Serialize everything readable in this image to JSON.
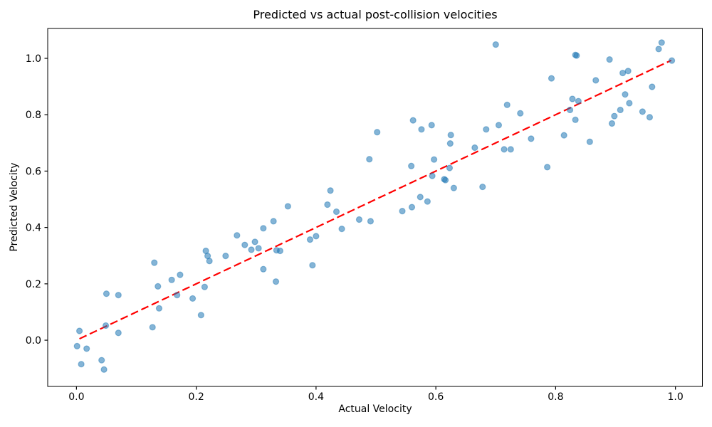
{
  "chart_data": {
    "type": "scatter",
    "title": "Predicted vs actual post-collision velocities",
    "xlabel": "Actual Velocity",
    "ylabel": "Predicted Velocity",
    "xlim": [
      -0.048,
      1.045
    ],
    "ylim": [
      -0.164,
      1.106
    ],
    "xtick_values": [
      0.0,
      0.2,
      0.4,
      0.6,
      0.8,
      1.0
    ],
    "xtick_labels": [
      "0.0",
      "0.2",
      "0.4",
      "0.6",
      "0.8",
      "1.0"
    ],
    "ytick_values": [
      0.0,
      0.2,
      0.4,
      0.6,
      0.8,
      1.0
    ],
    "ytick_labels": [
      "0.0",
      "0.2",
      "0.4",
      "0.6",
      "0.8",
      "1.0"
    ],
    "grid": false,
    "legend": "none",
    "marker_color": "#1f77b4",
    "marker_alpha": 0.55,
    "reference_line": {
      "name": "identity-line y=x",
      "color": "#ff0000",
      "style": "dashed",
      "from": [
        0.005,
        0.005
      ],
      "to": [
        0.993,
        0.993
      ]
    },
    "points": [
      [
        0.001,
        -0.021
      ],
      [
        0.005,
        0.033
      ],
      [
        0.008,
        -0.085
      ],
      [
        0.017,
        -0.03
      ],
      [
        0.042,
        -0.071
      ],
      [
        0.046,
        -0.104
      ],
      [
        0.049,
        0.052
      ],
      [
        0.05,
        0.165
      ],
      [
        0.07,
        0.16
      ],
      [
        0.07,
        0.026
      ],
      [
        0.127,
        0.046
      ],
      [
        0.13,
        0.275
      ],
      [
        0.136,
        0.191
      ],
      [
        0.138,
        0.113
      ],
      [
        0.159,
        0.214
      ],
      [
        0.168,
        0.16
      ],
      [
        0.173,
        0.232
      ],
      [
        0.194,
        0.148
      ],
      [
        0.208,
        0.089
      ],
      [
        0.214,
        0.189
      ],
      [
        0.216,
        0.317
      ],
      [
        0.219,
        0.299
      ],
      [
        0.222,
        0.281
      ],
      [
        0.249,
        0.299
      ],
      [
        0.268,
        0.372
      ],
      [
        0.281,
        0.338
      ],
      [
        0.292,
        0.321
      ],
      [
        0.298,
        0.349
      ],
      [
        0.304,
        0.326
      ],
      [
        0.312,
        0.397
      ],
      [
        0.312,
        0.252
      ],
      [
        0.329,
        0.422
      ],
      [
        0.333,
        0.208
      ],
      [
        0.334,
        0.319
      ],
      [
        0.34,
        0.317
      ],
      [
        0.353,
        0.475
      ],
      [
        0.39,
        0.357
      ],
      [
        0.394,
        0.266
      ],
      [
        0.4,
        0.369
      ],
      [
        0.419,
        0.481
      ],
      [
        0.424,
        0.531
      ],
      [
        0.434,
        0.456
      ],
      [
        0.443,
        0.395
      ],
      [
        0.472,
        0.428
      ],
      [
        0.491,
        0.422
      ],
      [
        0.489,
        0.642
      ],
      [
        0.502,
        0.738
      ],
      [
        0.544,
        0.458
      ],
      [
        0.559,
        0.618
      ],
      [
        0.56,
        0.472
      ],
      [
        0.562,
        0.78
      ],
      [
        0.574,
        0.508
      ],
      [
        0.576,
        0.748
      ],
      [
        0.586,
        0.492
      ],
      [
        0.593,
        0.763
      ],
      [
        0.594,
        0.583
      ],
      [
        0.597,
        0.641
      ],
      [
        0.614,
        0.571
      ],
      [
        0.616,
        0.568
      ],
      [
        0.623,
        0.611
      ],
      [
        0.624,
        0.698
      ],
      [
        0.625,
        0.728
      ],
      [
        0.63,
        0.54
      ],
      [
        0.665,
        0.683
      ],
      [
        0.678,
        0.544
      ],
      [
        0.684,
        0.748
      ],
      [
        0.7,
        1.049
      ],
      [
        0.705,
        0.763
      ],
      [
        0.714,
        0.677
      ],
      [
        0.719,
        0.835
      ],
      [
        0.725,
        0.677
      ],
      [
        0.741,
        0.805
      ],
      [
        0.759,
        0.715
      ],
      [
        0.786,
        0.614
      ],
      [
        0.793,
        0.929
      ],
      [
        0.814,
        0.727
      ],
      [
        0.824,
        0.817
      ],
      [
        0.828,
        0.856
      ],
      [
        0.833,
        1.012
      ],
      [
        0.835,
        1.01
      ],
      [
        0.833,
        0.782
      ],
      [
        0.838,
        0.848
      ],
      [
        0.857,
        0.704
      ],
      [
        0.867,
        0.922
      ],
      [
        0.89,
        0.996
      ],
      [
        0.894,
        0.769
      ],
      [
        0.898,
        0.795
      ],
      [
        0.908,
        0.817
      ],
      [
        0.912,
        0.948
      ],
      [
        0.916,
        0.872
      ],
      [
        0.921,
        0.955
      ],
      [
        0.923,
        0.841
      ],
      [
        0.945,
        0.811
      ],
      [
        0.957,
        0.791
      ],
      [
        0.961,
        0.899
      ],
      [
        0.972,
        1.033
      ],
      [
        0.977,
        1.056
      ],
      [
        0.994,
        0.992
      ]
    ]
  }
}
